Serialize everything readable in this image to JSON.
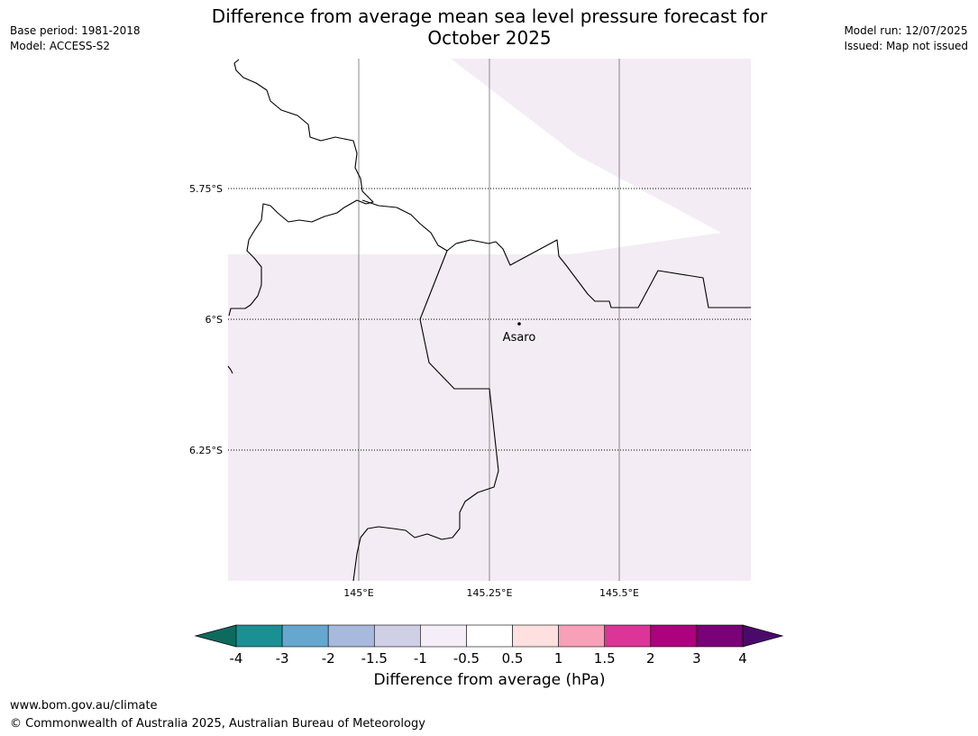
{
  "header": {
    "title_line1": "Difference from average mean sea level pressure forecast for",
    "title_line2": "October 2025",
    "base_period": "Base period: 1981-2018",
    "model": "Model: ACCESS-S2",
    "model_run": "Model run: 12/07/2025",
    "issued": "Issued: Map not issued"
  },
  "map": {
    "lat_labels": [
      "5.75°S",
      "6°S",
      "6.25°S"
    ],
    "lon_labels": [
      "145°E",
      "145.25°E",
      "145.5°E"
    ],
    "place": "Asaro",
    "fill_color": "#f4ecf5",
    "coast_color": "#000000"
  },
  "colorbar": {
    "label": "Difference from average (hPa)",
    "ticks": [
      "-4",
      "-3",
      "-2",
      "-1.5",
      "-1",
      "-0.5",
      "0.5",
      "1",
      "1.5",
      "2",
      "3",
      "4"
    ],
    "low_extend_color": "#0d6b5e",
    "high_extend_color": "#4b0a6b",
    "colors": [
      "#1a9093",
      "#66a7cf",
      "#a7b9dc",
      "#cfcfe6",
      "#f5edf7",
      "#ffffff",
      "#fde0df",
      "#f8a0b8",
      "#dd3497",
      "#ae017e",
      "#7a0177"
    ]
  },
  "footer": {
    "url": "www.bom.gov.au/climate",
    "copyright": "© Commonwealth of Australia 2025, Australian Bureau of Meteorology"
  }
}
